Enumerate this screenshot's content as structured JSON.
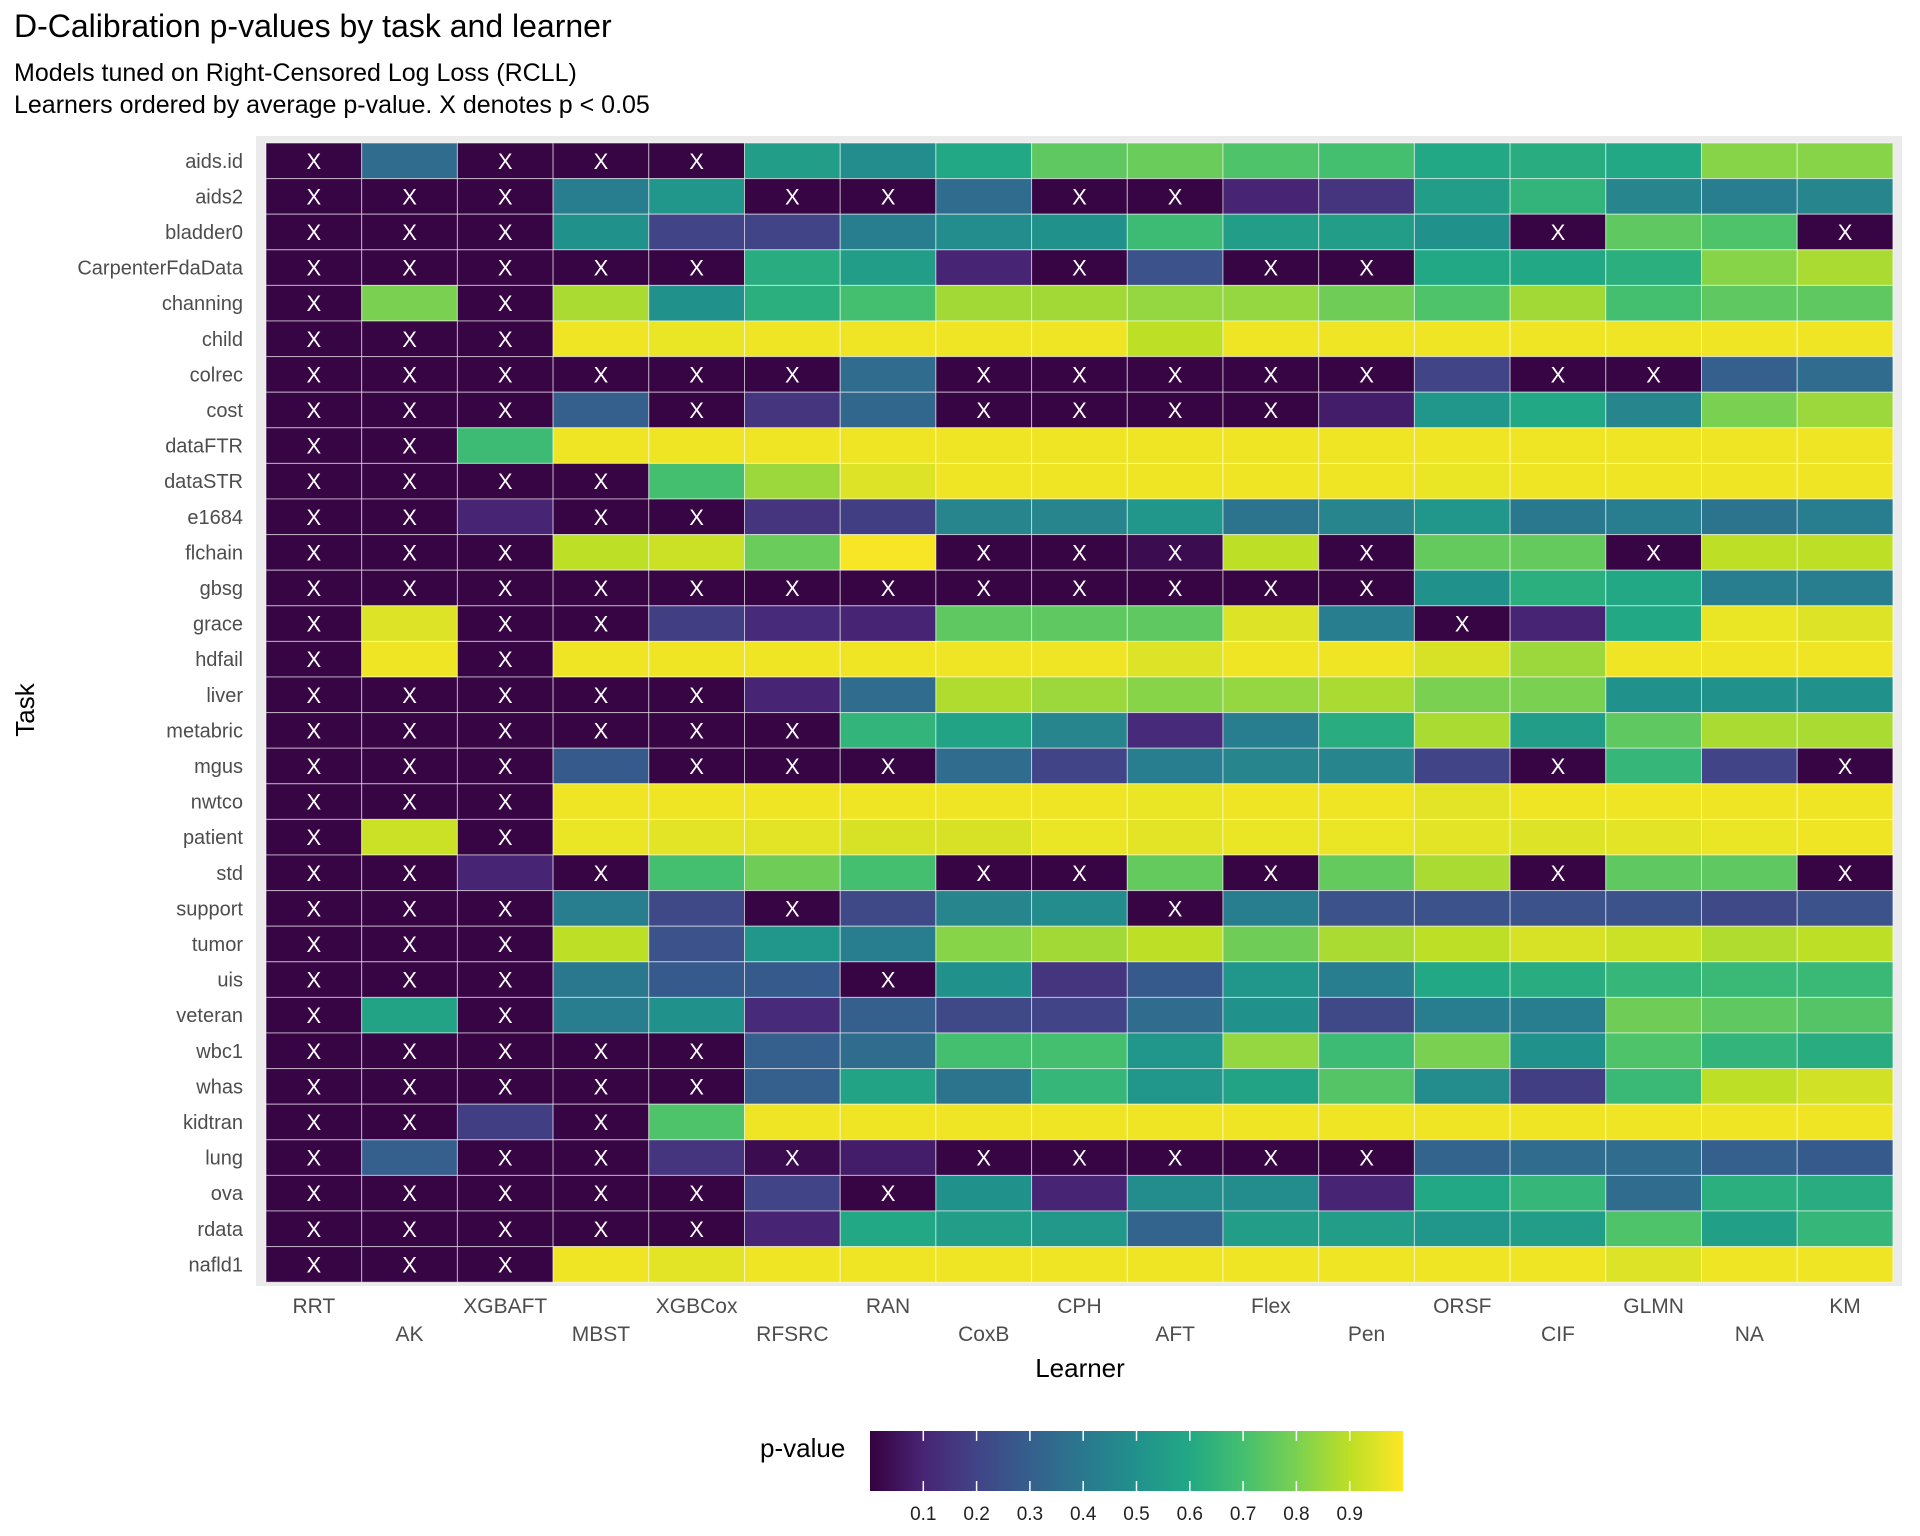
{
  "title": "D-Calibration p-values by task and learner",
  "subtitle_lines": [
    "Models tuned on Right-Censored Log Loss (RCLL)",
    "Learners ordered by average p-value. X denotes p < 0.05"
  ],
  "chart_data": {
    "type": "heatmap",
    "title": "D-Calibration p-values by task and learner",
    "xlabel": "Learner",
    "ylabel": "Task",
    "x": [
      "RRT",
      "AK",
      "XGBAFT",
      "MBST",
      "XGBCox",
      "RFSRC",
      "RAN",
      "CoxB",
      "CPH",
      "AFT",
      "Flex",
      "Pen",
      "ORSF",
      "CIF",
      "GLMN",
      "NA",
      "KM"
    ],
    "y": [
      "aids.id",
      "aids2",
      "bladder0",
      "CarpenterFdaData",
      "channing",
      "child",
      "colrec",
      "cost",
      "dataFTR",
      "dataSTR",
      "e1684",
      "flchain",
      "gbsg",
      "grace",
      "hdfail",
      "liver",
      "metabric",
      "mgus",
      "nwtco",
      "patient",
      "std",
      "support",
      "tumor",
      "uis",
      "veteran",
      "wbc1",
      "whas",
      "kidtran",
      "lung",
      "ova",
      "rdata",
      "nafld1"
    ],
    "significance_marker": "X",
    "significance_threshold": 0.05,
    "values": [
      [
        0.01,
        0.35,
        0.01,
        0.01,
        0.01,
        0.55,
        0.48,
        0.6,
        0.75,
        0.77,
        0.72,
        0.7,
        0.6,
        0.62,
        0.6,
        0.82,
        0.82
      ],
      [
        0.01,
        0.01,
        0.01,
        0.42,
        0.52,
        0.01,
        0.01,
        0.35,
        0.01,
        0.01,
        0.1,
        0.15,
        0.55,
        0.65,
        0.45,
        0.42,
        0.45
      ],
      [
        0.01,
        0.01,
        0.01,
        0.5,
        0.2,
        0.2,
        0.42,
        0.48,
        0.5,
        0.68,
        0.55,
        0.55,
        0.5,
        0.01,
        0.75,
        0.72,
        0.01
      ],
      [
        0.01,
        0.01,
        0.01,
        0.01,
        0.01,
        0.62,
        0.55,
        0.1,
        0.01,
        0.25,
        0.01,
        0.01,
        0.6,
        0.6,
        0.63,
        0.82,
        0.87
      ],
      [
        0.01,
        0.8,
        0.01,
        0.87,
        0.5,
        0.63,
        0.7,
        0.86,
        0.86,
        0.84,
        0.84,
        0.78,
        0.72,
        0.86,
        0.7,
        0.75,
        0.75
      ],
      [
        0.01,
        0.01,
        0.01,
        0.98,
        0.97,
        0.98,
        0.98,
        0.98,
        0.98,
        0.9,
        0.98,
        0.98,
        0.98,
        0.98,
        0.98,
        0.98,
        0.98
      ],
      [
        0.01,
        0.01,
        0.01,
        0.01,
        0.01,
        0.01,
        0.35,
        0.01,
        0.01,
        0.01,
        0.01,
        0.01,
        0.2,
        0.01,
        0.01,
        0.3,
        0.35
      ],
      [
        0.01,
        0.01,
        0.01,
        0.3,
        0.01,
        0.15,
        0.33,
        0.01,
        0.01,
        0.01,
        0.01,
        0.08,
        0.52,
        0.6,
        0.45,
        0.8,
        0.85
      ],
      [
        0.01,
        0.01,
        0.68,
        0.98,
        0.98,
        0.98,
        0.98,
        0.98,
        0.98,
        0.98,
        0.98,
        0.98,
        0.98,
        0.98,
        0.98,
        0.98,
        0.98
      ],
      [
        0.01,
        0.01,
        0.01,
        0.01,
        0.7,
        0.85,
        0.95,
        0.98,
        0.98,
        0.98,
        0.98,
        0.98,
        0.97,
        0.98,
        0.98,
        0.98,
        0.98
      ],
      [
        0.01,
        0.01,
        0.1,
        0.01,
        0.01,
        0.15,
        0.18,
        0.45,
        0.45,
        0.52,
        0.38,
        0.45,
        0.52,
        0.4,
        0.42,
        0.38,
        0.42
      ],
      [
        0.01,
        0.01,
        0.01,
        0.9,
        0.92,
        0.77,
        0.99,
        0.01,
        0.01,
        0.03,
        0.9,
        0.01,
        0.76,
        0.76,
        0.01,
        0.9,
        0.9
      ],
      [
        0.01,
        0.01,
        0.01,
        0.01,
        0.01,
        0.01,
        0.01,
        0.01,
        0.01,
        0.01,
        0.01,
        0.01,
        0.5,
        0.63,
        0.6,
        0.42,
        0.42
      ],
      [
        0.01,
        0.95,
        0.01,
        0.01,
        0.18,
        0.12,
        0.1,
        0.75,
        0.75,
        0.75,
        0.95,
        0.42,
        0.01,
        0.1,
        0.6,
        0.97,
        0.95
      ],
      [
        0.01,
        0.98,
        0.01,
        0.98,
        0.98,
        0.98,
        0.98,
        0.98,
        0.98,
        0.95,
        0.98,
        0.98,
        0.94,
        0.85,
        0.98,
        0.98,
        0.98
      ],
      [
        0.01,
        0.01,
        0.01,
        0.01,
        0.01,
        0.1,
        0.35,
        0.88,
        0.85,
        0.82,
        0.84,
        0.87,
        0.8,
        0.8,
        0.5,
        0.5,
        0.5
      ],
      [
        0.01,
        0.01,
        0.01,
        0.01,
        0.01,
        0.01,
        0.65,
        0.58,
        0.45,
        0.12,
        0.42,
        0.62,
        0.87,
        0.55,
        0.75,
        0.87,
        0.87
      ],
      [
        0.01,
        0.01,
        0.01,
        0.28,
        0.01,
        0.01,
        0.01,
        0.35,
        0.2,
        0.42,
        0.45,
        0.45,
        0.2,
        0.01,
        0.66,
        0.2,
        0.01
      ],
      [
        0.01,
        0.01,
        0.01,
        0.98,
        0.98,
        0.98,
        0.98,
        0.98,
        0.98,
        0.97,
        0.98,
        0.98,
        0.96,
        0.98,
        0.98,
        0.98,
        0.98
      ],
      [
        0.01,
        0.92,
        0.01,
        0.97,
        0.96,
        0.96,
        0.94,
        0.94,
        0.97,
        0.96,
        0.97,
        0.97,
        0.96,
        0.95,
        0.96,
        0.97,
        0.98
      ],
      [
        0.01,
        0.01,
        0.1,
        0.01,
        0.7,
        0.78,
        0.7,
        0.01,
        0.01,
        0.76,
        0.01,
        0.76,
        0.87,
        0.01,
        0.75,
        0.75,
        0.01
      ],
      [
        0.01,
        0.01,
        0.01,
        0.42,
        0.22,
        0.01,
        0.22,
        0.45,
        0.48,
        0.01,
        0.42,
        0.25,
        0.25,
        0.25,
        0.25,
        0.22,
        0.25
      ],
      [
        0.01,
        0.01,
        0.01,
        0.9,
        0.25,
        0.52,
        0.42,
        0.82,
        0.86,
        0.9,
        0.78,
        0.87,
        0.9,
        0.94,
        0.92,
        0.88,
        0.9
      ],
      [
        0.01,
        0.01,
        0.01,
        0.4,
        0.28,
        0.28,
        0.01,
        0.5,
        0.15,
        0.28,
        0.52,
        0.42,
        0.6,
        0.62,
        0.66,
        0.67,
        0.67
      ],
      [
        0.01,
        0.58,
        0.01,
        0.42,
        0.5,
        0.12,
        0.3,
        0.22,
        0.2,
        0.35,
        0.5,
        0.22,
        0.42,
        0.42,
        0.78,
        0.75,
        0.73
      ],
      [
        0.01,
        0.01,
        0.01,
        0.01,
        0.01,
        0.3,
        0.35,
        0.7,
        0.7,
        0.52,
        0.84,
        0.68,
        0.8,
        0.5,
        0.72,
        0.65,
        0.62
      ],
      [
        0.01,
        0.01,
        0.01,
        0.01,
        0.01,
        0.3,
        0.58,
        0.38,
        0.66,
        0.52,
        0.58,
        0.73,
        0.48,
        0.18,
        0.67,
        0.9,
        0.93
      ],
      [
        0.01,
        0.01,
        0.18,
        0.01,
        0.72,
        0.98,
        0.98,
        0.98,
        0.98,
        0.98,
        0.98,
        0.98,
        0.98,
        0.98,
        0.98,
        0.98,
        0.98
      ],
      [
        0.01,
        0.3,
        0.01,
        0.01,
        0.15,
        0.03,
        0.08,
        0.01,
        0.01,
        0.01,
        0.01,
        0.01,
        0.32,
        0.35,
        0.35,
        0.3,
        0.28
      ],
      [
        0.01,
        0.01,
        0.01,
        0.01,
        0.01,
        0.2,
        0.01,
        0.5,
        0.1,
        0.48,
        0.48,
        0.1,
        0.6,
        0.66,
        0.35,
        0.63,
        0.62
      ],
      [
        0.01,
        0.01,
        0.01,
        0.01,
        0.01,
        0.1,
        0.6,
        0.55,
        0.53,
        0.32,
        0.55,
        0.55,
        0.52,
        0.55,
        0.72,
        0.56,
        0.66
      ],
      [
        0.01,
        0.01,
        0.01,
        0.98,
        0.96,
        0.98,
        0.98,
        0.98,
        0.98,
        0.98,
        0.98,
        0.98,
        0.98,
        0.98,
        0.95,
        0.98,
        0.98
      ]
    ],
    "legend": {
      "title": "p-value",
      "ticks": [
        "0.1",
        "0.2",
        "0.3",
        "0.4",
        "0.5",
        "0.6",
        "0.7",
        "0.8",
        "0.9"
      ],
      "tick_values": [
        0.1,
        0.2,
        0.3,
        0.4,
        0.5,
        0.6,
        0.7,
        0.8,
        0.9
      ],
      "range": [
        0,
        1
      ],
      "colormap": "viridis",
      "placement": "bottom"
    },
    "grid": true
  }
}
